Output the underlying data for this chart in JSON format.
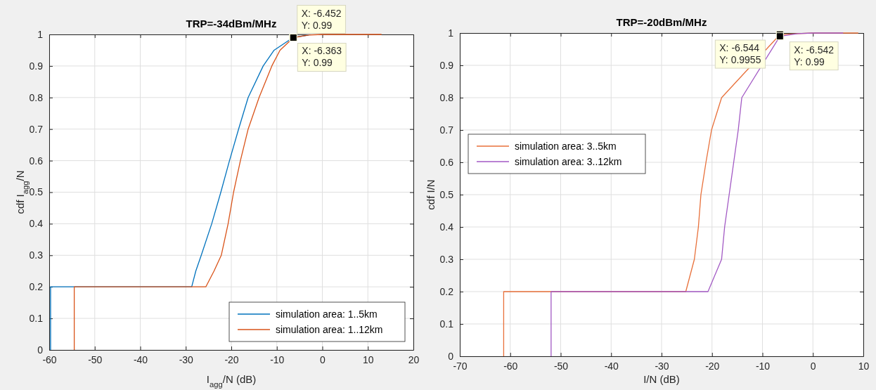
{
  "chart_data": [
    {
      "type": "line",
      "title": "TRP=-34dBm/MHz",
      "xlabel": "I$_{agg}$/N (dB)",
      "ylabel": "cdf I$_{agg}$/N",
      "xlim": [
        -60,
        20
      ],
      "ylim": [
        0,
        1
      ],
      "xticks": [
        -60,
        -50,
        -40,
        -30,
        -20,
        -10,
        0,
        10,
        20
      ],
      "yticks": [
        0,
        0.1,
        0.2,
        0.3,
        0.4,
        0.5,
        0.6,
        0.7,
        0.8,
        0.9,
        1
      ],
      "grid": true,
      "legend": "bottom right",
      "line_style": "solid",
      "marker": "none",
      "series": [
        {
          "name": "simulation area: 1..5km",
          "color": "#0072bd",
          "x": [
            -59.7,
            -59.7,
            -28.7,
            -27.8,
            -26.6,
            -24.3,
            -22.3,
            -20.4,
            -18.4,
            -16.3,
            -13.0,
            -10.6,
            -6.452,
            -3
          ],
          "values": [
            0,
            0.2,
            0.2,
            0.25,
            0.3,
            0.4,
            0.5,
            0.6,
            0.7,
            0.8,
            0.9,
            0.95,
            0.99,
            0.998
          ]
        },
        {
          "name": "simulation area: 1..12km",
          "color": "#d95319",
          "x": [
            -54.5,
            -54.5,
            -25.6,
            -23.8,
            -22.2,
            -20.7,
            -19.5,
            -18.0,
            -16.3,
            -13.9,
            -11.1,
            -9.3,
            -6.363,
            -3,
            0,
            13
          ],
          "values": [
            0,
            0.2,
            0.2,
            0.25,
            0.3,
            0.4,
            0.5,
            0.6,
            0.7,
            0.8,
            0.9,
            0.95,
            0.99,
            0.998,
            1,
            1
          ]
        }
      ],
      "annotations": [
        {
          "text": "X: -6.452\nY: 0.99",
          "x": -6.452,
          "y": 0.99
        },
        {
          "text": "X: -6.363\nY: 0.99",
          "x": -6.363,
          "y": 0.99
        }
      ]
    },
    {
      "type": "line",
      "title": "TRP=-20dBm/MHz",
      "xlabel": "I/N (dB)",
      "ylabel": "cdf I/N",
      "xlim": [
        -70,
        10
      ],
      "ylim": [
        0,
        1
      ],
      "xticks": [
        -70,
        -60,
        -50,
        -40,
        -30,
        -20,
        -10,
        0,
        10
      ],
      "yticks": [
        0,
        0.1,
        0.2,
        0.3,
        0.4,
        0.5,
        0.6,
        0.7,
        0.8,
        0.9,
        1
      ],
      "grid": true,
      "legend": "left",
      "line_style": "solid",
      "marker": "none",
      "series": [
        {
          "name": "simulation area: 3..5km",
          "color": "#e8703a",
          "x": [
            -61.3,
            -61.3,
            -25.2,
            -23.5,
            -22.7,
            -22.2,
            -21.2,
            -20.1,
            -18.1,
            -6.544,
            -3,
            0,
            9
          ],
          "values": [
            0,
            0.2,
            0.2,
            0.3,
            0.4,
            0.5,
            0.6,
            0.7,
            0.8,
            0.995,
            0.998,
            1,
            1
          ]
        },
        {
          "name": "simulation area: 3..12km",
          "color": "#a259c4",
          "x": [
            -51.9,
            -51.9,
            -20.8,
            -18.1,
            -17.5,
            -16.6,
            -15.7,
            -14.8,
            -14.1,
            -6.542,
            -3,
            0,
            6
          ],
          "values": [
            0,
            0.2,
            0.2,
            0.3,
            0.4,
            0.5,
            0.6,
            0.7,
            0.8,
            0.99,
            0.998,
            1,
            1
          ]
        }
      ],
      "annotations": [
        {
          "text": "X: -6.544\nY: 0.9955",
          "x": -6.544,
          "y": 0.9955
        },
        {
          "text": "X: -6.542\nY: 0.99",
          "x": -6.542,
          "y": 0.99
        }
      ]
    }
  ]
}
